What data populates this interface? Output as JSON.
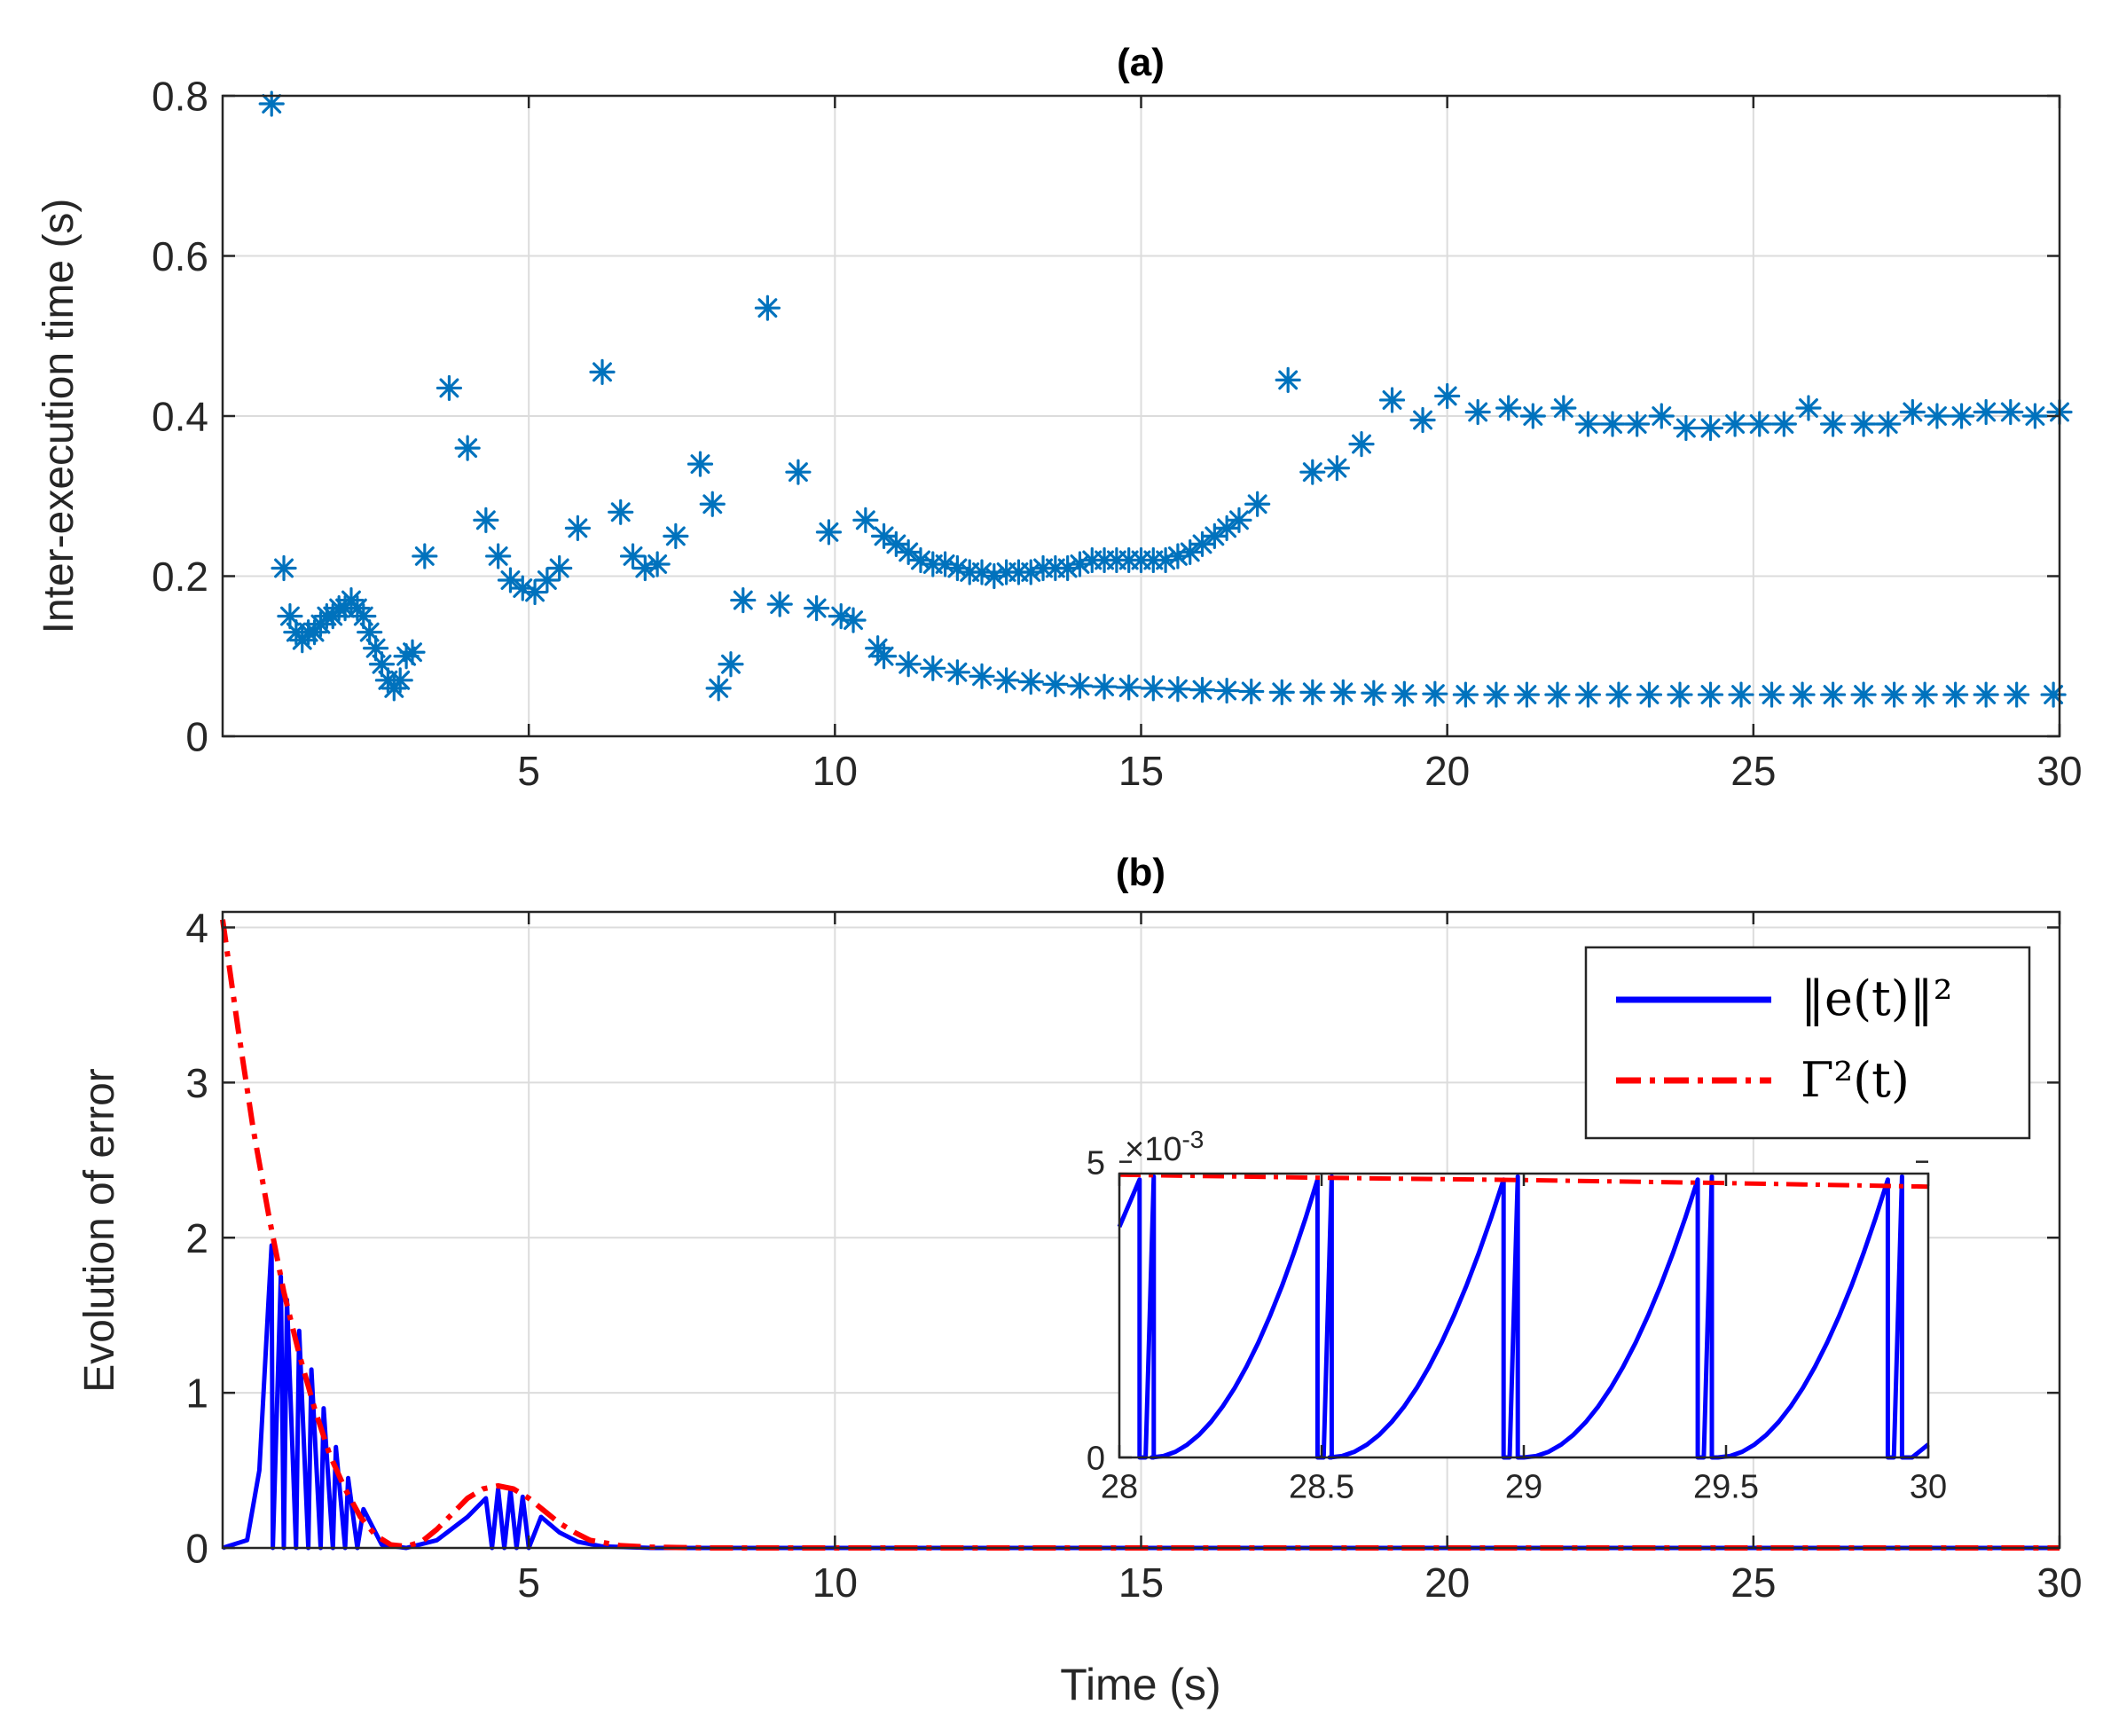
{
  "chart_data": [
    {
      "type": "scatter",
      "title": "(a)",
      "xlabel": "",
      "ylabel": "Inter-execution time (s)",
      "xlim": [
        0,
        30
      ],
      "ylim": [
        0,
        0.8
      ],
      "xticks": [
        5,
        10,
        15,
        20,
        25,
        30
      ],
      "yticks": [
        0,
        0.2,
        0.4,
        0.6,
        0.8
      ],
      "xtick_labels": [
        "5",
        "10",
        "15",
        "20",
        "25",
        "30"
      ],
      "ytick_labels": [
        "0",
        "0.2",
        "0.4",
        "0.6",
        "0.8"
      ],
      "grid": true,
      "marker": "asterisk",
      "color": "#0072BD",
      "x": [
        0.8,
        1.0,
        1.1,
        1.2,
        1.3,
        1.4,
        1.5,
        1.6,
        1.7,
        1.8,
        1.9,
        2.0,
        2.1,
        2.2,
        2.3,
        2.4,
        2.5,
        2.6,
        2.7,
        2.8,
        2.9,
        3.0,
        3.1,
        3.3,
        3.7,
        4.0,
        4.3,
        4.5,
        4.7,
        4.9,
        5.1,
        5.3,
        5.5,
        5.8,
        6.2,
        6.5,
        6.7,
        6.9,
        7.1,
        7.4,
        7.8,
        8.0,
        8.1,
        8.3,
        8.5,
        8.9,
        9.1,
        9.4,
        9.7,
        9.9,
        10.1,
        10.3,
        10.5,
        10.7,
        10.8,
        11.0,
        11.2,
        11.4,
        11.6,
        11.8,
        12.0,
        12.2,
        12.4,
        12.6,
        12.8,
        13.0,
        13.2,
        13.4,
        13.6,
        13.8,
        14.0,
        14.2,
        14.4,
        14.6,
        14.8,
        15.0,
        15.2,
        15.4,
        15.6,
        15.8,
        16.0,
        16.2,
        16.4,
        16.6,
        16.9,
        17.4,
        17.8,
        18.2,
        18.6,
        19.1,
        19.6,
        20.0,
        20.5,
        21.0,
        21.4,
        21.9,
        22.3,
        22.7,
        23.1,
        23.5,
        23.9,
        24.3,
        24.7,
        25.1,
        25.5,
        25.9,
        26.3,
        26.8,
        27.2,
        27.6,
        28.0,
        28.4,
        28.8,
        29.2,
        29.6,
        30.0,
        10.8,
        11.2,
        11.6,
        12.0,
        12.4,
        12.8,
        13.2,
        13.6,
        14.0,
        14.4,
        14.8,
        15.2,
        15.6,
        16.0,
        16.4,
        16.8,
        17.3,
        17.8,
        18.3,
        18.8,
        19.3,
        19.8,
        20.3,
        20.8,
        21.3,
        21.8,
        22.3,
        22.8,
        23.3,
        23.8,
        24.3,
        24.8,
        25.3,
        25.8,
        26.3,
        26.8,
        27.3,
        27.8,
        28.3,
        28.8,
        29.3,
        29.9
      ],
      "y": [
        0.79,
        0.21,
        0.15,
        0.13,
        0.12,
        0.13,
        0.13,
        0.14,
        0.15,
        0.15,
        0.16,
        0.16,
        0.17,
        0.16,
        0.15,
        0.13,
        0.11,
        0.09,
        0.07,
        0.06,
        0.07,
        0.1,
        0.105,
        0.225,
        0.435,
        0.36,
        0.27,
        0.225,
        0.195,
        0.185,
        0.18,
        0.195,
        0.21,
        0.26,
        0.455,
        0.28,
        0.225,
        0.21,
        0.215,
        0.25,
        0.34,
        0.29,
        0.06,
        0.09,
        0.17,
        0.535,
        0.165,
        0.33,
        0.16,
        0.255,
        0.15,
        0.145,
        0.27,
        0.11,
        0.25,
        0.24,
        0.23,
        0.22,
        0.215,
        0.215,
        0.21,
        0.205,
        0.205,
        0.2,
        0.205,
        0.205,
        0.205,
        0.21,
        0.21,
        0.21,
        0.215,
        0.22,
        0.22,
        0.22,
        0.22,
        0.22,
        0.22,
        0.22,
        0.225,
        0.23,
        0.24,
        0.25,
        0.26,
        0.27,
        0.29,
        0.445,
        0.33,
        0.335,
        0.365,
        0.42,
        0.395,
        0.425,
        0.405,
        0.41,
        0.4,
        0.41,
        0.39,
        0.39,
        0.39,
        0.4,
        0.385,
        0.385,
        0.39,
        0.39,
        0.39,
        0.41,
        0.39,
        0.39,
        0.39,
        0.405,
        0.4,
        0.4,
        0.405,
        0.405,
        0.4,
        0.405,
        0.1,
        0.09,
        0.085,
        0.08,
        0.075,
        0.07,
        0.068,
        0.065,
        0.063,
        0.062,
        0.061,
        0.06,
        0.059,
        0.058,
        0.057,
        0.056,
        0.055,
        0.055,
        0.055,
        0.054,
        0.053,
        0.053,
        0.052,
        0.052,
        0.052,
        0.052,
        0.052,
        0.052,
        0.052,
        0.052,
        0.052,
        0.052,
        0.052,
        0.052,
        0.052,
        0.052,
        0.052,
        0.052,
        0.052,
        0.052,
        0.052,
        0.052
      ]
    },
    {
      "type": "line",
      "title": "(b)",
      "xlabel": "Time (s)",
      "ylabel": "Evolution of error",
      "xlim": [
        0,
        30
      ],
      "ylim": [
        0,
        4.1
      ],
      "xticks": [
        5,
        10,
        15,
        20,
        25,
        30
      ],
      "yticks": [
        0,
        1,
        2,
        3,
        4
      ],
      "xtick_labels": [
        "5",
        "10",
        "15",
        "20",
        "25",
        "30"
      ],
      "ytick_labels": [
        "0",
        "1",
        "2",
        "3",
        "4"
      ],
      "grid": true,
      "legend_position": "top-right",
      "legend": [
        "‖e(t)‖²",
        "Γ²(t)"
      ],
      "series": [
        {
          "name": "‖e(t)‖²",
          "color": "#0000FF",
          "style": "solid",
          "description_points": {
            "x": [
              0,
              0.4,
              0.6,
              0.75,
              0.8,
              0.82,
              0.95,
              1.0,
              1.05,
              1.2,
              1.25,
              1.4,
              1.45,
              1.6,
              1.65,
              1.8,
              1.85,
              2.0,
              2.05,
              2.2,
              2.3,
              2.6,
              3.0,
              3.5,
              4.0,
              4.3,
              4.4,
              4.5,
              4.6,
              4.7,
              4.8,
              4.9,
              5.0,
              5.2,
              5.5,
              5.8,
              6.2,
              7.0,
              30
            ],
            "y": [
              0,
              0.05,
              0.5,
              1.6,
              1.95,
              0.0,
              1.75,
              0.0,
              1.6,
              0.0,
              1.4,
              0.0,
              1.15,
              0.0,
              0.9,
              0.0,
              0.65,
              0.0,
              0.45,
              0.0,
              0.25,
              0.02,
              0.0,
              0.05,
              0.2,
              0.32,
              0.0,
              0.38,
              0.0,
              0.37,
              0.0,
              0.33,
              0.0,
              0.2,
              0.1,
              0.04,
              0.01,
              0.0,
              0.0
            ]
          }
        },
        {
          "name": "Γ²(t)",
          "color": "#FF0000",
          "style": "dash-dot",
          "description_points": {
            "x": [
              0,
              0.25,
              0.5,
              0.75,
              1.0,
              1.25,
              1.5,
              1.75,
              2.0,
              2.25,
              2.5,
              2.75,
              3.0,
              3.25,
              3.5,
              3.75,
              4.0,
              4.25,
              4.5,
              4.75,
              5.0,
              5.25,
              5.5,
              5.75,
              6.0,
              6.5,
              7.0,
              8.0,
              30
            ],
            "y": [
              4.05,
              3.35,
              2.7,
              2.15,
              1.65,
              1.25,
              0.9,
              0.6,
              0.38,
              0.2,
              0.08,
              0.02,
              0.01,
              0.04,
              0.12,
              0.22,
              0.32,
              0.38,
              0.4,
              0.38,
              0.32,
              0.24,
              0.16,
              0.1,
              0.05,
              0.015,
              0.005,
              0.0,
              0.0
            ]
          }
        }
      ],
      "inset": {
        "xlim": [
          28,
          30
        ],
        "ylim": [
          0,
          4.8
        ],
        "xticks": [
          28,
          28.5,
          29,
          29.5,
          30
        ],
        "yticks": [
          0,
          5
        ],
        "xtick_labels": [
          "28",
          "28.5",
          "29",
          "29.5",
          "30"
        ],
        "ytick_labels": [
          "0",
          "5"
        ],
        "exponent_label": "×10",
        "exponent_power": "-3",
        "gamma_points": {
          "x": [
            28,
            28.5,
            29,
            29.5,
            30
          ],
          "y": [
            4.78,
            4.73,
            4.69,
            4.64,
            4.58
          ]
        },
        "error_cycles": {
          "starts": [
            28.08,
            28.52,
            29.0,
            29.48,
            29.96
          ],
          "peaks": [
            28.05,
            28.49,
            28.95,
            29.43,
            29.9
          ],
          "peak_value": 4.7
        }
      }
    }
  ]
}
